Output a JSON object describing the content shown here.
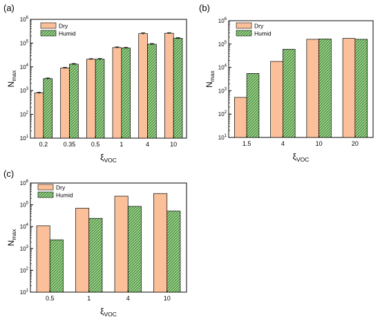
{
  "colors": {
    "dry_fill": "#FBC09A",
    "humid_fill": "#9CD38A",
    "humid_hatch": "#2F6E2A",
    "outline": "#000000"
  },
  "chart_data": [
    {
      "panel_label": "(a)",
      "type": "bar",
      "scale": "log",
      "ylim": [
        10,
        1000000
      ],
      "ylabel": "Nmax",
      "ylabel_main": "N",
      "ylabel_sub": "max",
      "xlabel": "ξVOC",
      "xlabel_main": "ξ",
      "xlabel_sub": "VOC",
      "categories": [
        "0.2",
        "0.35",
        "0.5",
        "1",
        "4",
        "10"
      ],
      "series": [
        {
          "name": "Dry",
          "values": [
            800,
            9000,
            21000,
            65000,
            250000,
            260000
          ],
          "errors": [
            60,
            500,
            1200,
            4000,
            20000,
            15000
          ]
        },
        {
          "name": "Humid",
          "values": [
            3200,
            13000,
            21000,
            62000,
            90000,
            160000
          ],
          "errors": [
            200,
            800,
            1500,
            4000,
            6000,
            10000
          ]
        }
      ],
      "legend_position": "top-left",
      "grid": false,
      "error_bars": true
    },
    {
      "panel_label": "(b)",
      "type": "bar",
      "scale": "log",
      "ylim": [
        10,
        1000000
      ],
      "ylabel": "Nmax",
      "ylabel_main": "N",
      "ylabel_sub": "max",
      "xlabel": "ξVOC",
      "xlabel_main": "ξ",
      "xlabel_sub": "VOC",
      "categories": [
        "1.5",
        "4",
        "10",
        "20"
      ],
      "series": [
        {
          "name": "Dry",
          "values": [
            520,
            18000,
            160000,
            175000
          ]
        },
        {
          "name": "Humid",
          "values": [
            5500,
            60000,
            165000,
            160000
          ]
        }
      ],
      "legend_position": "top-left",
      "grid": false,
      "error_bars": false
    },
    {
      "panel_label": "(c)",
      "type": "bar",
      "scale": "log",
      "ylim": [
        10,
        1000000
      ],
      "ylabel": "Nmax",
      "ylabel_main": "N",
      "ylabel_sub": "max",
      "xlabel": "ξVOC",
      "xlabel_main": "ξ",
      "xlabel_sub": "VOC",
      "categories": [
        "0.5",
        "1",
        "4",
        "10"
      ],
      "series": [
        {
          "name": "Dry",
          "values": [
            11000,
            70000,
            250000,
            330000
          ]
        },
        {
          "name": "Humid",
          "values": [
            2500,
            24000,
            85000,
            52000
          ]
        }
      ],
      "legend_position": "top-left",
      "grid": false,
      "error_bars": false
    }
  ]
}
